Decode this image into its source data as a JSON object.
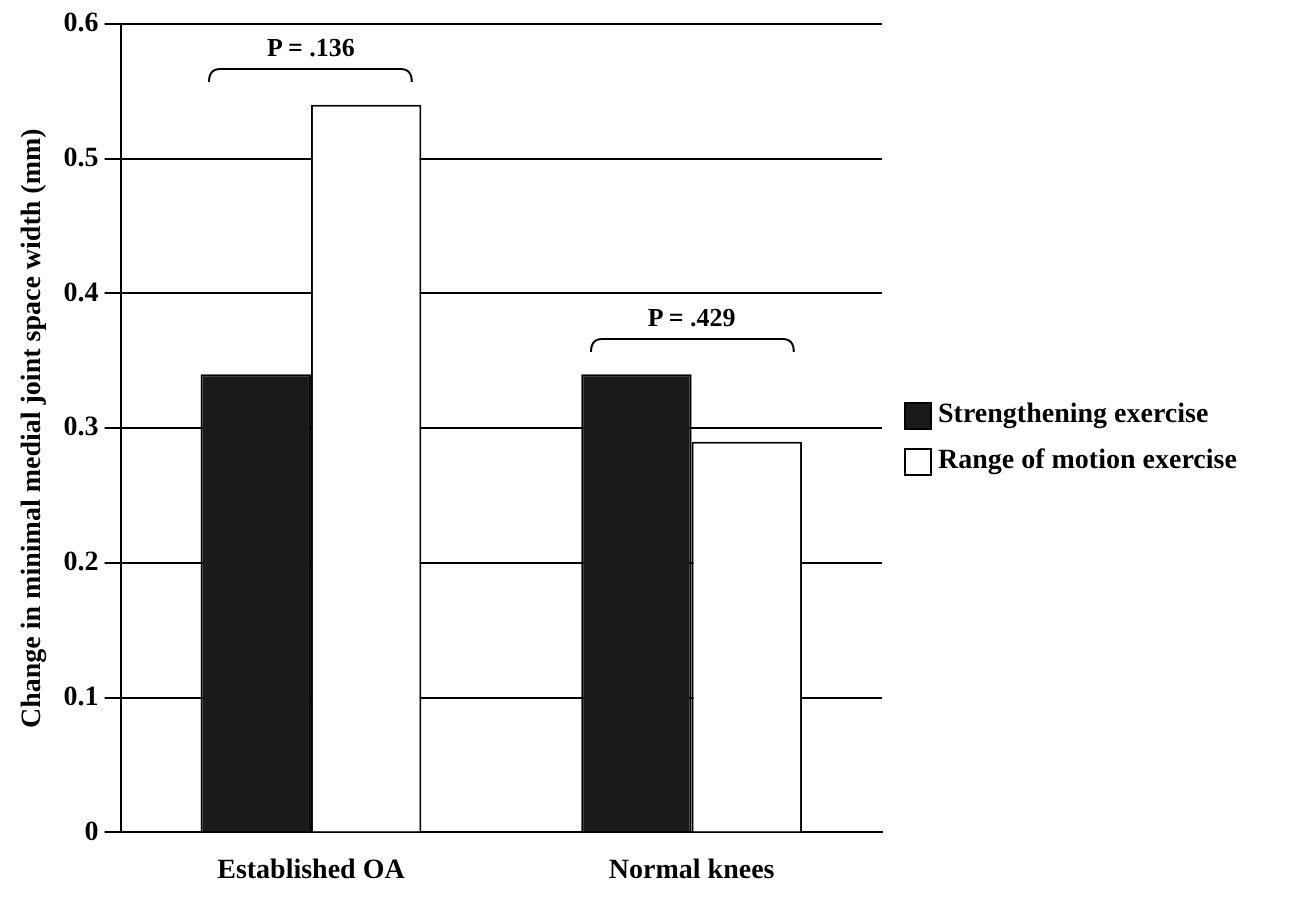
{
  "chart_data": {
    "type": "bar",
    "ylabel": "Change in minimal medial joint space width (mm)",
    "categories": [
      "Established OA",
      "Normal knees"
    ],
    "series": [
      {
        "name": "Strengthening exercise",
        "color": "#1a1a1a",
        "values": [
          0.34,
          0.34
        ]
      },
      {
        "name": "Range of motion exercise",
        "color": "#ffffff",
        "values": [
          0.54,
          0.29
        ]
      }
    ],
    "ylim": [
      0,
      0.6
    ],
    "yticks": [
      0,
      0.1,
      0.2,
      0.3,
      0.4,
      0.5,
      0.6
    ],
    "grid": "y",
    "legend": "right",
    "annotations": [
      "P = .136",
      "P = .429"
    ]
  }
}
